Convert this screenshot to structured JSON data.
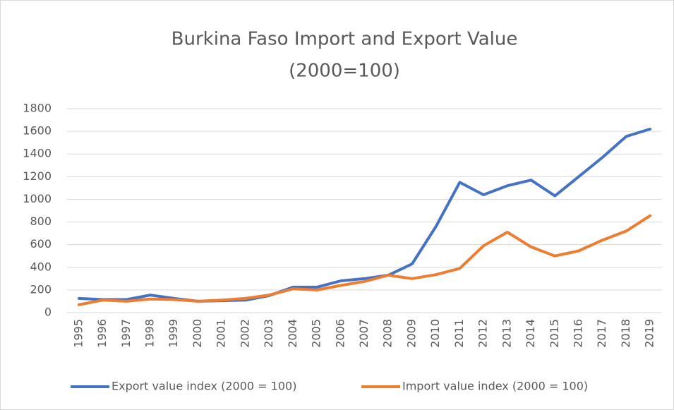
{
  "chart_data": {
    "type": "line",
    "title": [
      "Burkina Faso Import and Export Value",
      "(2000=100)"
    ],
    "categories": [
      "1995",
      "1996",
      "1997",
      "1998",
      "1999",
      "2000",
      "2001",
      "2002",
      "2003",
      "2004",
      "2005",
      "2006",
      "2007",
      "2008",
      "2009",
      "2010",
      "2011",
      "2012",
      "2013",
      "2014",
      "2015",
      "2016",
      "2017",
      "2018",
      "2019"
    ],
    "series": [
      {
        "name": "Export value index (2000 = 100)",
        "color": "#4472c4",
        "values": [
          125,
          115,
          115,
          155,
          125,
          100,
          105,
          110,
          150,
          225,
          225,
          280,
          300,
          330,
          430,
          760,
          1150,
          1040,
          1120,
          1170,
          1030,
          1200,
          1370,
          1555,
          1620
        ]
      },
      {
        "name": "Import value index (2000 = 100)",
        "color": "#ed7d31",
        "values": [
          70,
          110,
          100,
          120,
          115,
          100,
          110,
          125,
          155,
          210,
          200,
          240,
          275,
          330,
          300,
          335,
          390,
          590,
          710,
          580,
          500,
          545,
          640,
          720,
          855
        ]
      }
    ],
    "ylim": [
      0,
      1800
    ],
    "yticks": [
      0,
      200,
      400,
      600,
      800,
      1000,
      1200,
      1400,
      1600,
      1800
    ],
    "grid": true,
    "legend": "bottom"
  }
}
